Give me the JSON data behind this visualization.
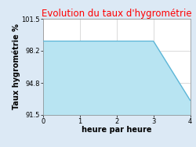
{
  "title": "Evolution du taux d'hygrométrie",
  "xlabel": "heure par heure",
  "ylabel": "Taux hygrométrie %",
  "x": [
    0,
    1,
    2,
    3,
    4
  ],
  "y": [
    99.2,
    99.2,
    99.2,
    99.2,
    93.0
  ],
  "ylim": [
    91.5,
    101.5
  ],
  "xlim": [
    0,
    4
  ],
  "yticks": [
    91.5,
    94.8,
    98.2,
    101.5
  ],
  "xticks": [
    0,
    1,
    2,
    3,
    4
  ],
  "line_color": "#5ab4d6",
  "fill_color": "#b8e4f2",
  "title_color": "#ff0000",
  "background_color": "#dce9f5",
  "plot_bg_color": "#ffffff",
  "grid_color": "#cccccc",
  "title_fontsize": 8.5,
  "label_fontsize": 7,
  "tick_fontsize": 6
}
